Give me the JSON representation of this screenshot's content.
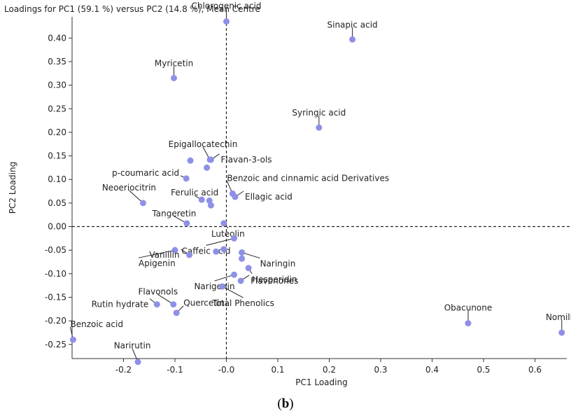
{
  "caption": {
    "open": "(",
    "letter": "b",
    "close": ")"
  },
  "chart_data": {
    "type": "scatter",
    "title": "Loadings for PC1 (59.1 %) versus PC2 (14.8 %), Mean Centre",
    "xlabel": "PC1 Loading",
    "ylabel": "PC2 Loading",
    "xlim": [
      -0.3,
      0.67
    ],
    "ylim": [
      -0.28,
      0.445
    ],
    "xticks": [
      -0.2,
      -0.1,
      0.0,
      0.1,
      0.2,
      0.3,
      0.4,
      0.5,
      0.6
    ],
    "xtick_labels": [
      "-0.2",
      "-0.1",
      "-0.0",
      "0.1",
      "0.2",
      "0.3",
      "0.4",
      "0.5",
      "0.6"
    ],
    "yticks": [
      0.4,
      0.35,
      0.3,
      0.25,
      0.2,
      0.15,
      0.1,
      0.05,
      0.0,
      -0.05,
      -0.1,
      -0.15,
      -0.2,
      -0.25
    ],
    "ytick_labels": [
      "0.40",
      "0.35",
      "0.30",
      "0.25",
      "0.20",
      "0.15",
      "0.10",
      "0.05",
      "0.00",
      "-0.05",
      "-0.10",
      "-0.15",
      "-0.20",
      "-0.25"
    ],
    "point_color": "#8e90e8",
    "reference_lines": {
      "x": 0,
      "y": 0,
      "style": "dashed"
    },
    "points": [
      {
        "label": "Chlorogenic acid",
        "x": 0.0,
        "y": 0.435
      },
      {
        "label": "Sinapic acid",
        "x": 0.245,
        "y": 0.397
      },
      {
        "label": "Myricetin",
        "x": -0.102,
        "y": 0.315
      },
      {
        "label": "Syringic acid",
        "x": 0.18,
        "y": 0.21
      },
      {
        "label": "Epigallocatechin",
        "x": -0.032,
        "y": 0.142
      },
      {
        "label": "Flavan-3-ols",
        "x": -0.03,
        "y": 0.142
      },
      {
        "label": "p-coumaric acid",
        "x": -0.078,
        "y": 0.102
      },
      {
        "label": "",
        "x": -0.07,
        "y": 0.14
      },
      {
        "label": "",
        "x": -0.038,
        "y": 0.125
      },
      {
        "label": "Benzoic and cinnamic acid Derivatives",
        "x": 0.012,
        "y": 0.07
      },
      {
        "label": "Ellagic acid",
        "x": 0.017,
        "y": 0.063
      },
      {
        "label": "Neoeriocitrin",
        "x": -0.162,
        "y": 0.05
      },
      {
        "label": "Ferulic acid",
        "x": -0.048,
        "y": 0.057
      },
      {
        "label": "",
        "x": -0.033,
        "y": 0.055
      },
      {
        "label": "",
        "x": -0.03,
        "y": 0.045
      },
      {
        "label": "Tangeretin",
        "x": -0.077,
        "y": 0.007
      },
      {
        "label": "Luteolin",
        "x": -0.005,
        "y": 0.007
      },
      {
        "label": "Caffeic acid",
        "x": 0.015,
        "y": -0.025
      },
      {
        "label": "Naringin",
        "x": 0.03,
        "y": -0.055
      },
      {
        "label": "Apigenin",
        "x": -0.1,
        "y": -0.05
      },
      {
        "label": "Vanillin",
        "x": -0.072,
        "y": -0.06
      },
      {
        "label": "",
        "x": -0.02,
        "y": -0.053
      },
      {
        "label": "",
        "x": -0.005,
        "y": -0.048
      },
      {
        "label": "Hesperidin",
        "x": 0.043,
        "y": -0.088
      },
      {
        "label": "",
        "x": 0.03,
        "y": -0.068
      },
      {
        "label": "Narigenin",
        "x": 0.015,
        "y": -0.102
      },
      {
        "label": "Flavonones",
        "x": 0.028,
        "y": -0.115
      },
      {
        "label": "Total Phenolics",
        "x": -0.008,
        "y": -0.127
      },
      {
        "label": "Flavonols",
        "x": -0.103,
        "y": -0.165
      },
      {
        "label": "Rutin hydrate",
        "x": -0.135,
        "y": -0.165
      },
      {
        "label": "Quercetin",
        "x": -0.097,
        "y": -0.183
      },
      {
        "label": "Benzoic acid",
        "x": -0.298,
        "y": -0.24
      },
      {
        "label": "Narirutin",
        "x": -0.172,
        "y": -0.287
      },
      {
        "label": "Obacunone",
        "x": 0.47,
        "y": -0.205
      },
      {
        "label": "Nomilin",
        "x": 0.652,
        "y": -0.225
      }
    ]
  }
}
